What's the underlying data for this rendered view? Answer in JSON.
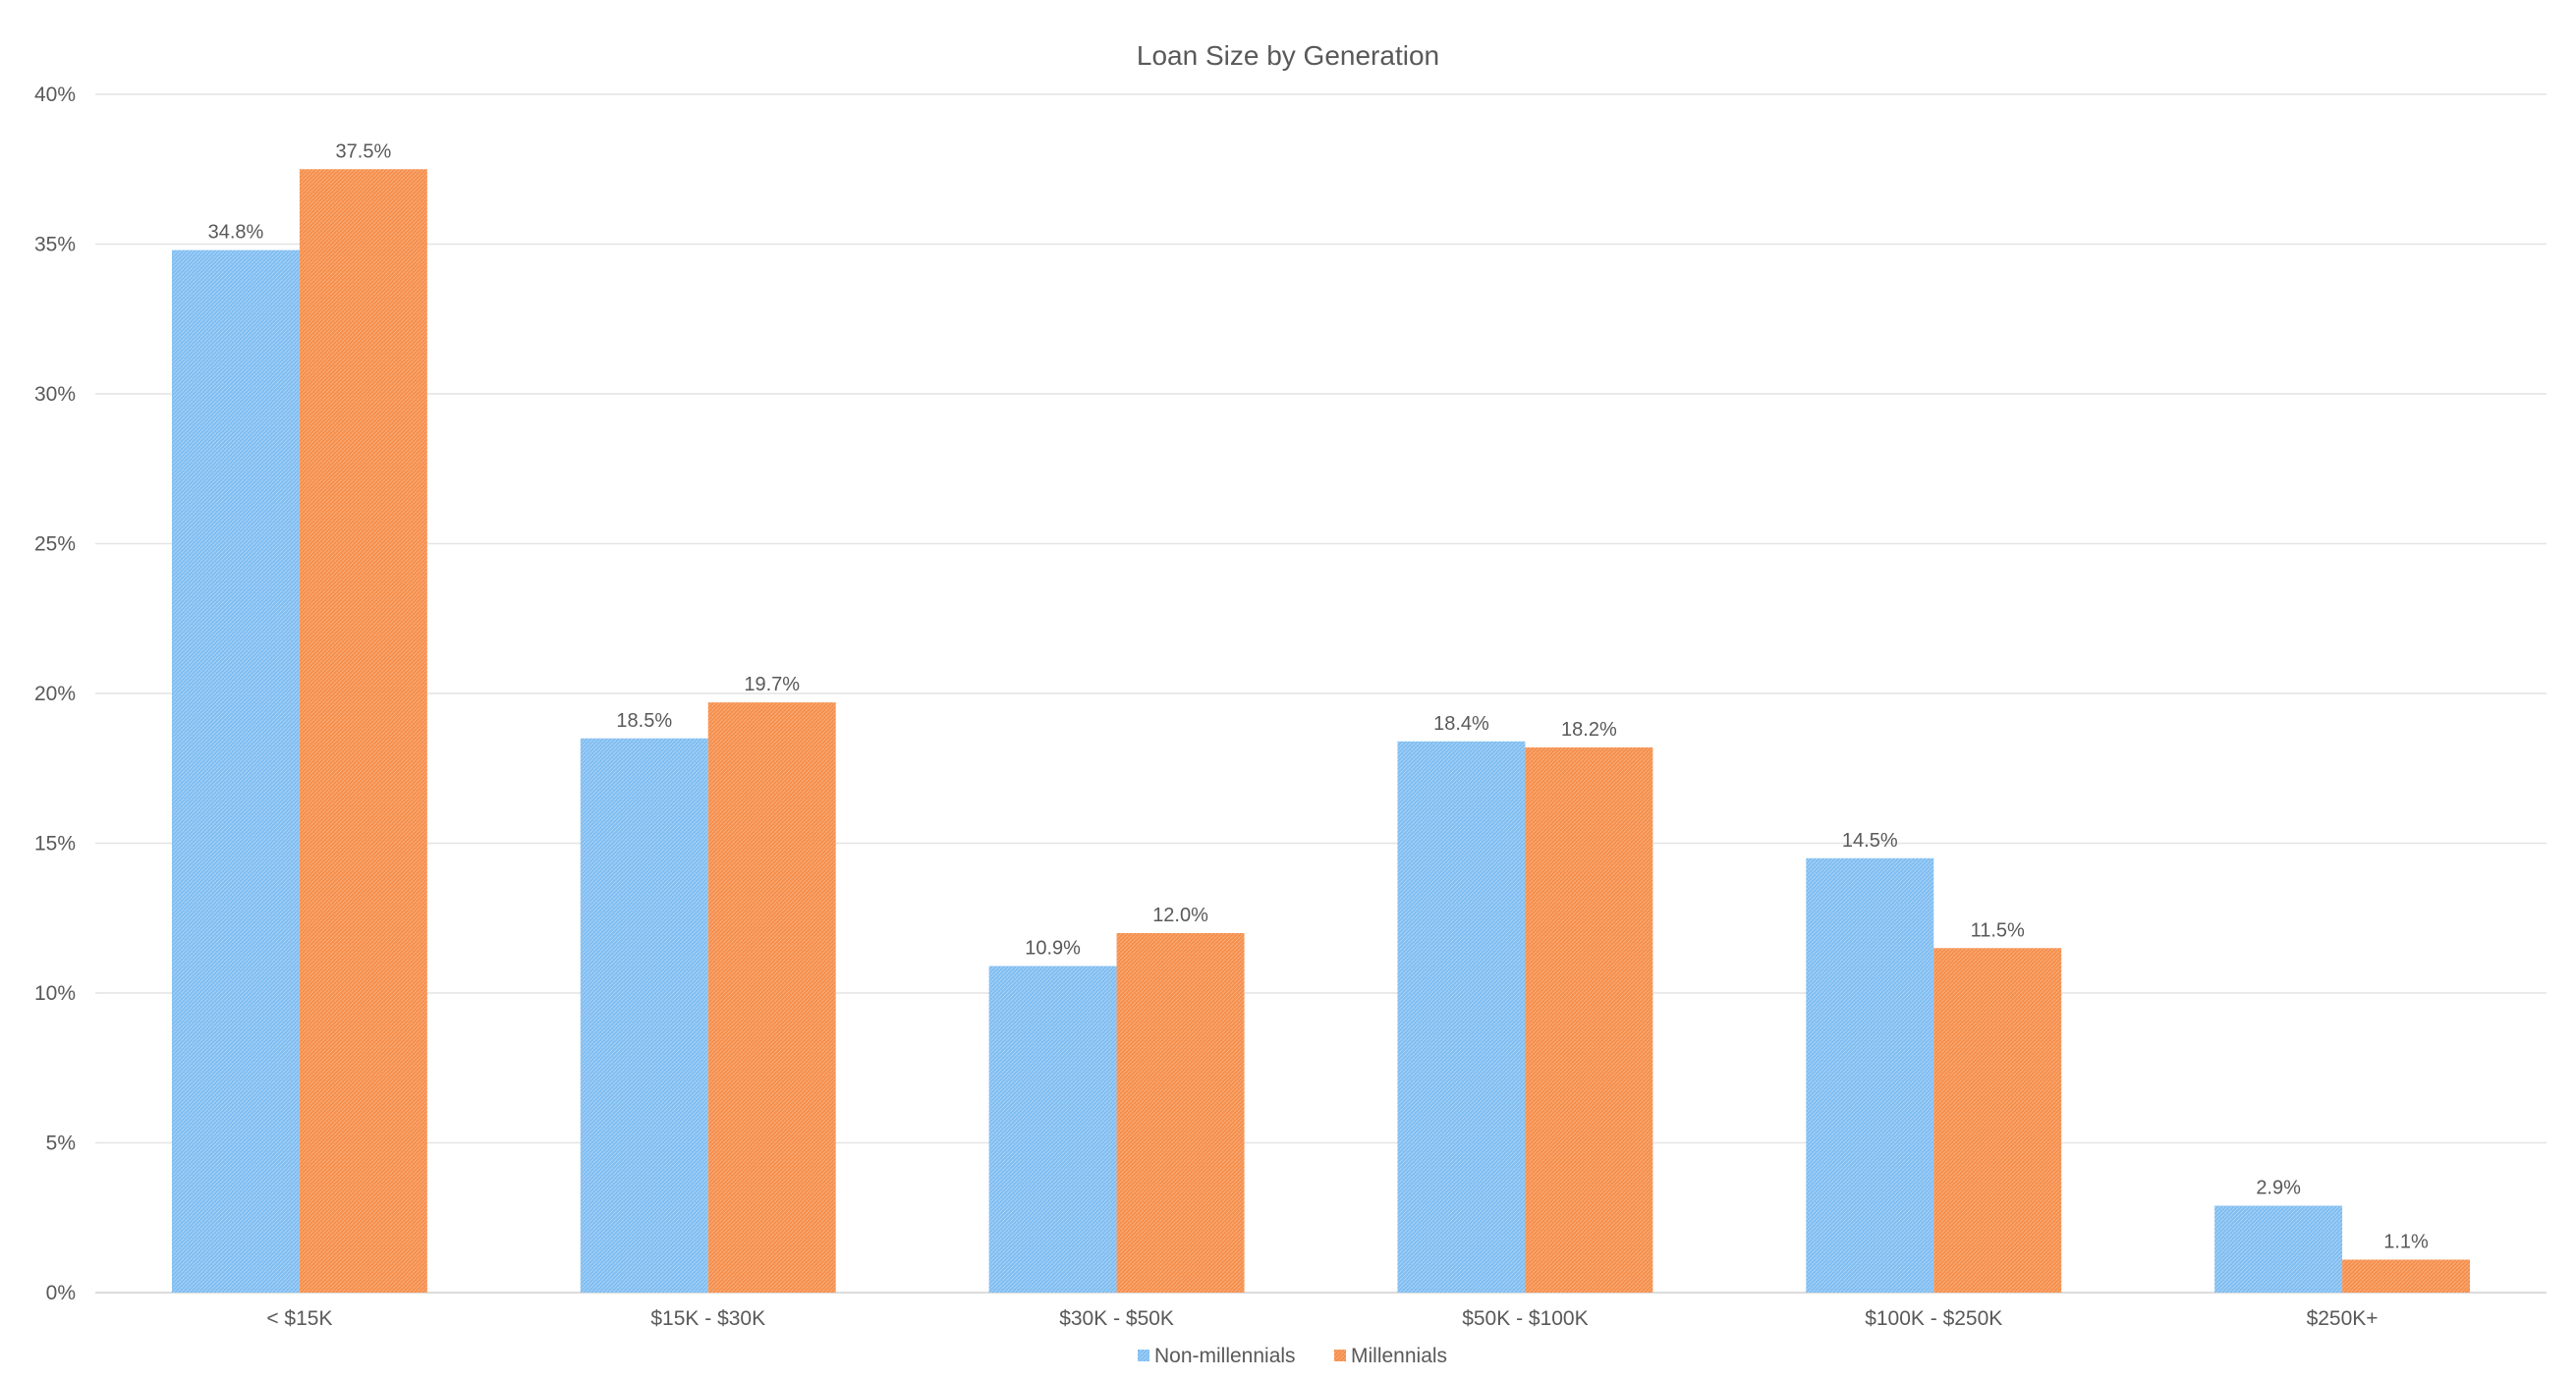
{
  "chart_data": {
    "type": "bar",
    "title": "Loan Size by Generation",
    "xlabel": "",
    "ylabel": "",
    "categories": [
      "< $15K",
      "$15K - $30K",
      "$30K - $50K",
      "$50K - $100K",
      "$100K - $250K",
      "$250K+"
    ],
    "series": [
      {
        "name": "Non-millennials",
        "color": "#7fbdf1",
        "values": [
          34.8,
          18.5,
          10.9,
          18.4,
          14.5,
          2.9
        ],
        "labels": [
          "34.8%",
          "18.5%",
          "10.9%",
          "18.4%",
          "14.5%",
          "2.9%"
        ]
      },
      {
        "name": "Millennials",
        "color": "#f58e4b",
        "values": [
          37.5,
          19.7,
          12.0,
          18.2,
          11.5,
          1.1
        ],
        "labels": [
          "37.5%",
          "19.7%",
          "12.0%",
          "18.2%",
          "11.5%",
          "1.1%"
        ]
      }
    ],
    "ylim": [
      0,
      40
    ],
    "yticks": [
      0,
      5,
      10,
      15,
      20,
      25,
      30,
      35,
      40
    ],
    "ytick_labels": [
      "0%",
      "5%",
      "10%",
      "15%",
      "20%",
      "25%",
      "30%",
      "35%",
      "40%"
    ],
    "grid": true,
    "legend_position": "bottom"
  }
}
